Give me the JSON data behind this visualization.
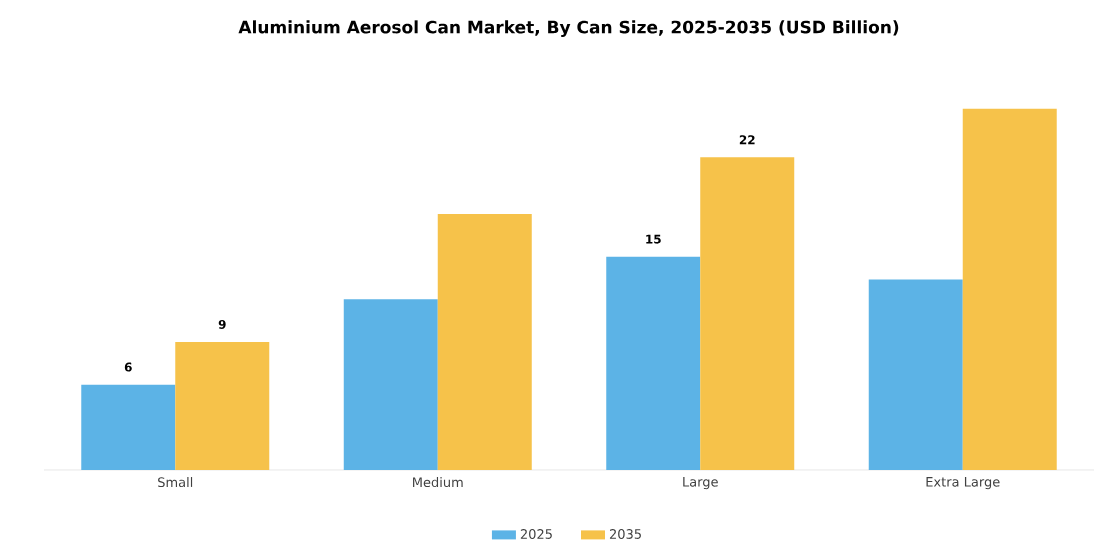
{
  "chart_data": {
    "type": "bar",
    "title": "Aluminium Aerosol Can Market, By Can Size, 2025-2035 (USD Billion)",
    "categories": [
      "Small",
      "Medium",
      "Large",
      "Extra Large"
    ],
    "series": [
      {
        "name": "2025",
        "color": "#5cb3e6",
        "values": [
          6,
          12.0,
          15,
          13.4
        ],
        "value_labels": [
          "6",
          null,
          "15",
          null
        ]
      },
      {
        "name": "2035",
        "color": "#f6c24a",
        "values": [
          9,
          18.0,
          22,
          25.4
        ],
        "value_labels": [
          "9",
          null,
          "22",
          null
        ]
      }
    ],
    "legend": "bottom"
  }
}
